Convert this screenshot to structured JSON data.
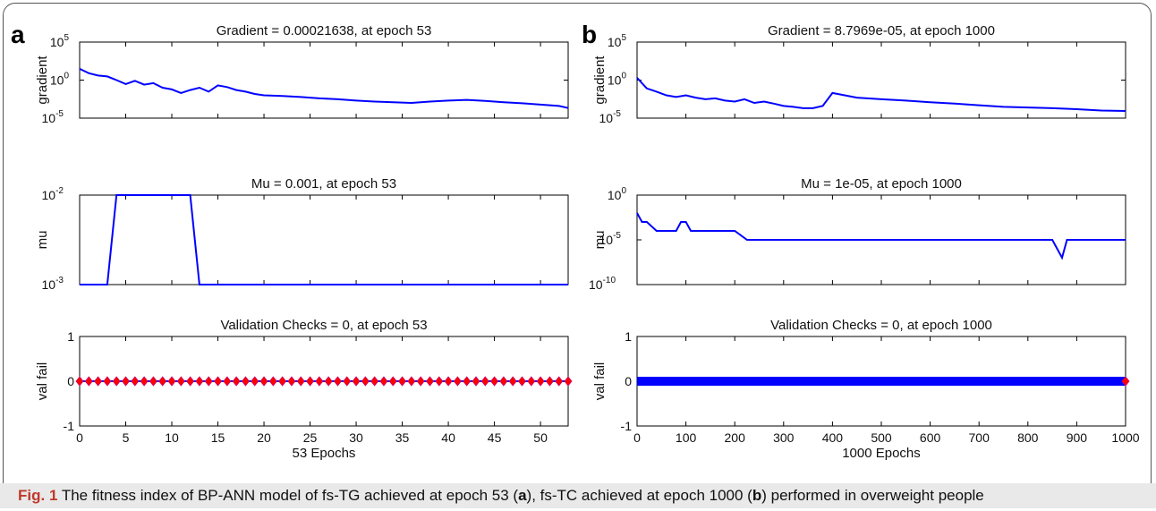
{
  "caption": {
    "label": "Fig. 1",
    "parts": [
      "The fitness index of BP-ANN model of fs-TG achieved at epoch 53 (",
      "a",
      "), fs-TC achieved at epoch 1000 (",
      "b",
      ") performed in overweight people"
    ]
  },
  "colors": {
    "line": "#0000ff",
    "marker_face": "#ff0000",
    "marker_edge": "#cc0066",
    "axis": "#000000",
    "caption_bg": "#e9e9e9",
    "caption_label": "#c0392b"
  },
  "chart_data": [
    {
      "panel": "a",
      "type": "line",
      "title": "Gradient = 0.00021638, at epoch 53",
      "ylabel": "gradient",
      "yscale": "log",
      "xlim": [
        0,
        53
      ],
      "ylim": [
        1e-05,
        100000.0
      ],
      "yticks": [
        {
          "base": "10",
          "exp": "5",
          "v": 100000.0
        },
        {
          "base": "10",
          "exp": "0",
          "v": 1
        },
        {
          "base": "10",
          "exp": "-5",
          "v": 1e-05
        }
      ],
      "x": [
        0,
        1,
        2,
        3,
        4,
        5,
        6,
        7,
        8,
        9,
        10,
        11,
        12,
        13,
        14,
        15,
        16,
        17,
        18,
        19,
        20,
        22,
        24,
        26,
        28,
        30,
        32,
        34,
        36,
        38,
        40,
        42,
        44,
        46,
        48,
        50,
        52,
        53
      ],
      "y": [
        30,
        8,
        4,
        3,
        1,
        0.3,
        0.8,
        0.25,
        0.4,
        0.1,
        0.06,
        0.02,
        0.05,
        0.1,
        0.03,
        0.2,
        0.12,
        0.05,
        0.03,
        0.015,
        0.01,
        0.008,
        0.006,
        0.004,
        0.003,
        0.002,
        0.0015,
        0.0012,
        0.001,
        0.0015,
        0.002,
        0.0025,
        0.0018,
        0.0012,
        0.0009,
        0.0006,
        0.0004,
        0.00021638
      ]
    },
    {
      "panel": "a",
      "type": "line",
      "title": "Mu = 0.001, at epoch 53",
      "ylabel": "mu",
      "yscale": "log",
      "xlim": [
        0,
        53
      ],
      "ylim": [
        0.001,
        0.01
      ],
      "yticks": [
        {
          "base": "10",
          "exp": "-2",
          "v": 0.01
        },
        {
          "base": "10",
          "exp": "-3",
          "v": 0.001
        }
      ],
      "x": [
        0,
        1,
        2,
        3,
        4,
        5,
        6,
        7,
        8,
        9,
        10,
        11,
        12,
        13,
        14,
        53
      ],
      "y": [
        0.001,
        0.001,
        0.001,
        0.001,
        0.01,
        0.01,
        0.01,
        0.01,
        0.01,
        0.01,
        0.01,
        0.01,
        0.01,
        0.001,
        0.001,
        0.001
      ]
    },
    {
      "panel": "a",
      "type": "scatter",
      "title": "Validation Checks = 0, at epoch 53",
      "ylabel": "val fail",
      "xlabel": "53 Epochs",
      "xlim": [
        0,
        53
      ],
      "ylim": [
        -1,
        1
      ],
      "xticks": [
        0,
        5,
        10,
        15,
        20,
        25,
        30,
        35,
        40,
        45,
        50
      ],
      "yticks": [
        {
          "label": "1",
          "v": 1
        },
        {
          "label": "0",
          "v": 0
        },
        {
          "label": "-1",
          "v": -1
        }
      ],
      "n_points": 54,
      "y_value": 0
    },
    {
      "panel": "b",
      "type": "line",
      "title": "Gradient = 8.7969e-05, at epoch 1000",
      "ylabel": "gradient",
      "yscale": "log",
      "xlim": [
        0,
        1000
      ],
      "ylim": [
        1e-05,
        100000.0
      ],
      "yticks": [
        {
          "base": "10",
          "exp": "5",
          "v": 100000.0
        },
        {
          "base": "10",
          "exp": "0",
          "v": 1
        },
        {
          "base": "10",
          "exp": "-5",
          "v": 1e-05
        }
      ],
      "x": [
        0,
        10,
        20,
        40,
        60,
        80,
        100,
        120,
        140,
        160,
        180,
        200,
        220,
        240,
        260,
        280,
        300,
        320,
        340,
        360,
        380,
        400,
        450,
        500,
        550,
        600,
        650,
        700,
        750,
        800,
        850,
        900,
        950,
        1000
      ],
      "y": [
        2,
        0.4,
        0.08,
        0.03,
        0.01,
        0.006,
        0.01,
        0.005,
        0.003,
        0.004,
        0.002,
        0.0015,
        0.003,
        0.001,
        0.0015,
        0.0008,
        0.0004,
        0.0003,
        0.0002,
        0.0002,
        0.0004,
        0.02,
        0.005,
        0.003,
        0.002,
        0.0012,
        0.0008,
        0.0005,
        0.0003,
        0.00025,
        0.0002,
        0.00015,
        0.0001,
        8.7969e-05
      ]
    },
    {
      "panel": "b",
      "type": "line",
      "title": "Mu = 1e-05, at epoch 1000",
      "ylabel": "mu",
      "yscale": "log",
      "xlim": [
        0,
        1000
      ],
      "ylim": [
        1e-10,
        1
      ],
      "yticks": [
        {
          "base": "10",
          "exp": "0",
          "v": 1
        },
        {
          "base": "10",
          "exp": "-5",
          "v": 1e-05
        },
        {
          "base": "10",
          "exp": "-10",
          "v": 1e-10
        }
      ],
      "x": [
        0,
        10,
        20,
        40,
        60,
        80,
        90,
        100,
        110,
        130,
        150,
        170,
        200,
        225,
        250,
        300,
        350,
        400,
        500,
        600,
        700,
        800,
        850,
        870,
        880,
        900,
        1000
      ],
      "y": [
        0.01,
        0.001,
        0.001,
        0.0001,
        0.0001,
        0.0001,
        0.001,
        0.001,
        0.0001,
        0.0001,
        0.0001,
        0.0001,
        0.0001,
        1e-05,
        1e-05,
        1e-05,
        1e-05,
        1e-05,
        1e-05,
        1e-05,
        1e-05,
        1e-05,
        1e-05,
        1e-07,
        1e-05,
        1e-05,
        1e-05
      ]
    },
    {
      "panel": "b",
      "type": "scatter",
      "title": "Validation Checks = 0, at epoch 1000",
      "ylabel": "val fail",
      "xlabel": "1000 Epochs",
      "xlim": [
        0,
        1000
      ],
      "ylim": [
        -1,
        1
      ],
      "xticks": [
        0,
        100,
        200,
        300,
        400,
        500,
        600,
        700,
        800,
        900,
        1000
      ],
      "yticks": [
        {
          "label": "1",
          "v": 1
        },
        {
          "label": "0",
          "v": 0
        },
        {
          "label": "-1",
          "v": -1
        }
      ],
      "n_points": 1001,
      "y_value": 0
    }
  ]
}
